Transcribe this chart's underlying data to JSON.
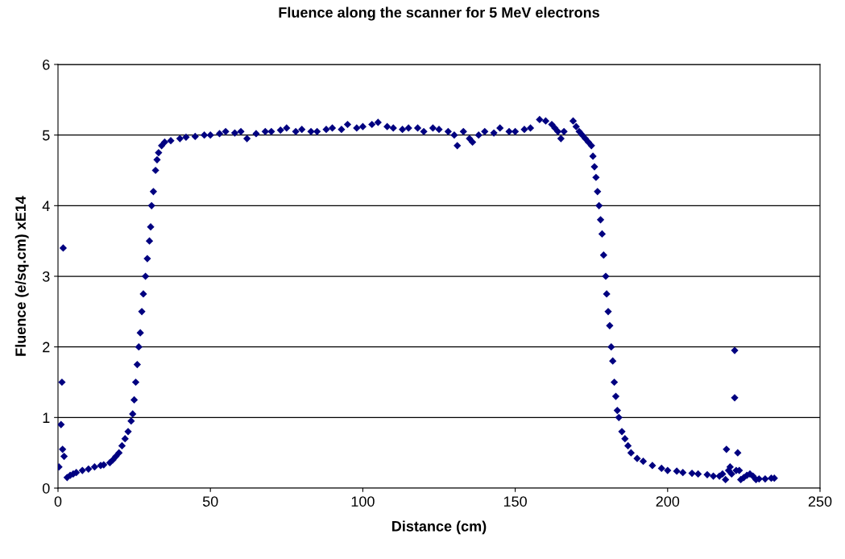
{
  "chart_data": {
    "type": "scatter",
    "title": "Fluence along the scanner for 5 MeV electrons",
    "xlabel": "Distance (cm)",
    "ylabel": "Fluence (e/sq.cm) xE14",
    "x": [
      0.3,
      1,
      1.3,
      1.7,
      1.5,
      2,
      3,
      4,
      5,
      6,
      8,
      10,
      12,
      14,
      15,
      17,
      18,
      19,
      20,
      21,
      22,
      23,
      24,
      24.5,
      25,
      25.5,
      26,
      26.5,
      27,
      27.5,
      28,
      28.7,
      29.3,
      30,
      30.4,
      30.7,
      31.3,
      32,
      32.5,
      33,
      34,
      35,
      37,
      40,
      42,
      45,
      48,
      50,
      53,
      55,
      58,
      60,
      62,
      65,
      68,
      70,
      73,
      75,
      78,
      80,
      83,
      85,
      88,
      90,
      93,
      95,
      98,
      100,
      103,
      105,
      108,
      110,
      113,
      115,
      118,
      120,
      123,
      125,
      128,
      130,
      131,
      133,
      135,
      136,
      138,
      140,
      143,
      145,
      148,
      150,
      153,
      155,
      158,
      160,
      162,
      163,
      164,
      165,
      166,
      169,
      170,
      171,
      172,
      173,
      174,
      175,
      175.5,
      176,
      176.5,
      177,
      177.5,
      178,
      178.5,
      179,
      179.7,
      180,
      180.5,
      181,
      181.5,
      182,
      182.5,
      183,
      183.5,
      184,
      185,
      186,
      187,
      188,
      190,
      192,
      195,
      198,
      200,
      203,
      205,
      208,
      210,
      213,
      215,
      217,
      218,
      219,
      219.3,
      220,
      220.5,
      221,
      222,
      222,
      222.5,
      223,
      223.5,
      224,
      225,
      226,
      227,
      228,
      229,
      230,
      232,
      234,
      235
    ],
    "values": [
      0.3,
      0.9,
      1.5,
      3.4,
      0.55,
      0.45,
      0.15,
      0.18,
      0.2,
      0.22,
      0.25,
      0.27,
      0.3,
      0.32,
      0.33,
      0.36,
      0.4,
      0.45,
      0.5,
      0.6,
      0.7,
      0.8,
      0.95,
      1.05,
      1.25,
      1.5,
      1.75,
      2.0,
      2.2,
      2.5,
      2.75,
      3.0,
      3.25,
      3.5,
      3.7,
      4.0,
      4.2,
      4.5,
      4.65,
      4.75,
      4.85,
      4.9,
      4.92,
      4.95,
      4.97,
      4.98,
      5.0,
      5.0,
      5.02,
      5.05,
      5.03,
      5.05,
      4.95,
      5.02,
      5.05,
      5.05,
      5.07,
      5.1,
      5.05,
      5.08,
      5.05,
      5.05,
      5.08,
      5.1,
      5.08,
      5.15,
      5.1,
      5.12,
      5.15,
      5.18,
      5.12,
      5.1,
      5.08,
      5.1,
      5.1,
      5.05,
      5.1,
      5.08,
      5.05,
      5.0,
      4.85,
      5.05,
      4.95,
      4.9,
      5.0,
      5.05,
      5.03,
      5.1,
      5.05,
      5.05,
      5.08,
      5.1,
      5.22,
      5.2,
      5.15,
      5.1,
      5.05,
      4.95,
      5.05,
      5.2,
      5.12,
      5.05,
      5.0,
      4.95,
      4.9,
      4.85,
      4.7,
      4.55,
      4.4,
      4.2,
      4.0,
      3.8,
      3.6,
      3.3,
      3.0,
      2.75,
      2.5,
      2.3,
      2.0,
      1.8,
      1.5,
      1.3,
      1.1,
      1.0,
      0.8,
      0.7,
      0.6,
      0.5,
      0.42,
      0.38,
      0.32,
      0.28,
      0.25,
      0.24,
      0.22,
      0.21,
      0.2,
      0.19,
      0.17,
      0.17,
      0.2,
      0.12,
      0.55,
      0.25,
      0.3,
      0.2,
      1.95,
      1.28,
      0.25,
      0.5,
      0.25,
      0.12,
      0.15,
      0.18,
      0.2,
      0.17,
      0.12,
      0.13,
      0.13,
      0.14,
      0.14
    ],
    "color": "#000080",
    "marker": "diamond",
    "xlim": [
      0,
      250
    ],
    "xticks": [
      0,
      50,
      100,
      150,
      200,
      250
    ],
    "ylim": [
      0,
      6
    ],
    "yticks": [
      0,
      1,
      2,
      3,
      4,
      5,
      6
    ],
    "grid": "y"
  }
}
